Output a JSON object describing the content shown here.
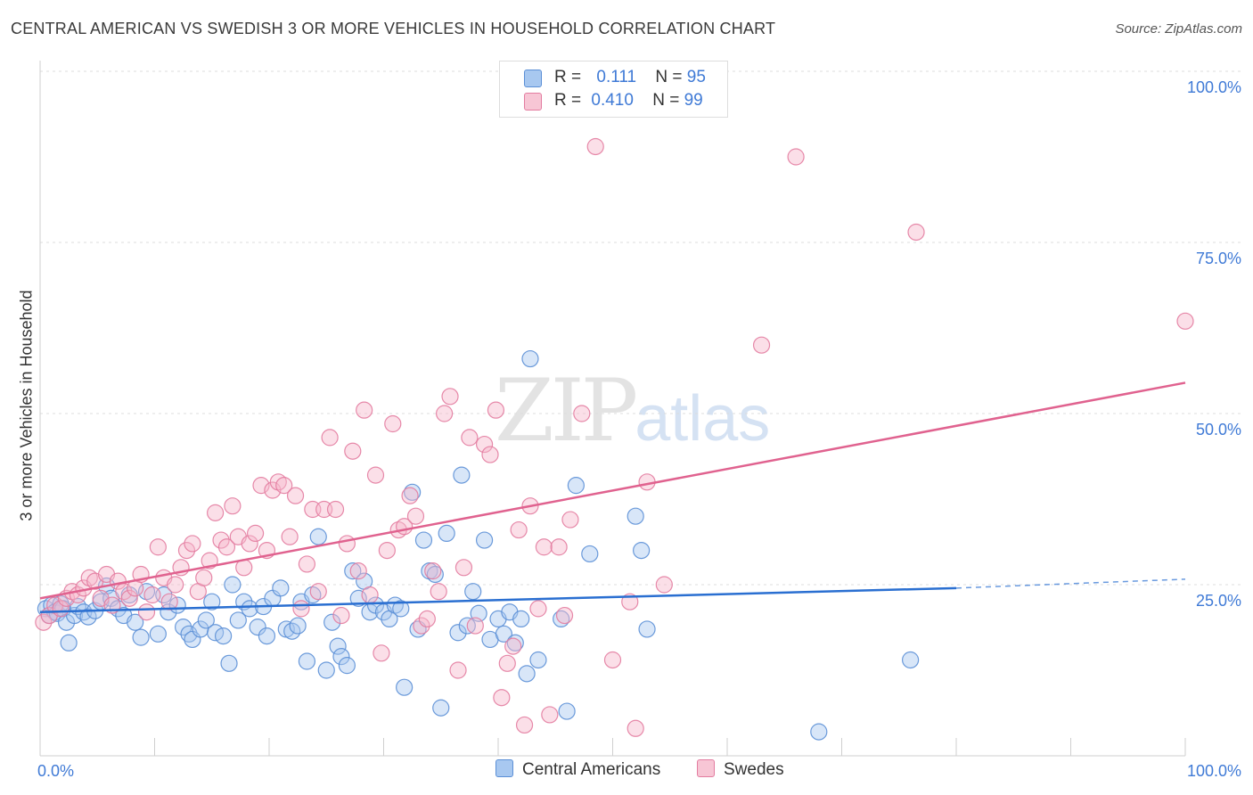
{
  "header": {
    "title": "CENTRAL AMERICAN VS SWEDISH 3 OR MORE VEHICLES IN HOUSEHOLD CORRELATION CHART",
    "source": "Source: ZipAtlas.com"
  },
  "watermark": {
    "zip": "ZIP",
    "atlas": "atlas"
  },
  "legend": {
    "rows": [
      {
        "r_label": "R =",
        "r_value": "0.111",
        "n_label": "N =",
        "n_value": "95",
        "color": "#a8c8f0"
      },
      {
        "r_label": "R =",
        "r_value": "0.410",
        "n_label": "N =",
        "n_value": "99",
        "color": "#f7b8cb"
      }
    ]
  },
  "bottom_legend": {
    "central": "Central Americans",
    "swedes": "Swedes"
  },
  "chart_data": {
    "type": "scatter",
    "title": "CENTRAL AMERICAN VS SWEDISH 3 OR MORE VEHICLES IN HOUSEHOLD CORRELATION CHART",
    "xlabel": "",
    "ylabel": "3 or more Vehicles in Household",
    "xlim": [
      0,
      100
    ],
    "ylim": [
      0,
      100
    ],
    "x_tick_labels": [
      "0.0%",
      "100.0%"
    ],
    "y_ticks": [
      25,
      50,
      75,
      100
    ],
    "y_tick_labels": [
      "25.0%",
      "50.0%",
      "75.0%",
      "100.0%"
    ],
    "grid": true,
    "legend_position": "top-center",
    "colors": {
      "central_fill": "#a8c8f0",
      "central_stroke": "#5b8fd6",
      "central_line": "#2a6fd1",
      "swedes_fill": "#f7b8cb",
      "swedes_stroke": "#e37ca0",
      "swedes_line": "#e0628f",
      "tick_blue": "#3f7ad6"
    },
    "series": [
      {
        "name": "Central Americans",
        "R": 0.111,
        "N": 95,
        "trend": {
          "x0": 0,
          "y0": 21.0,
          "x1": 80,
          "y1": 24.5,
          "dash_to_x": 100,
          "dash_to_y": 25.8
        },
        "points": [
          [
            0.5,
            21.5
          ],
          [
            0.8,
            20.5
          ],
          [
            1.0,
            22.0
          ],
          [
            1.3,
            21.0
          ],
          [
            1.5,
            20.8
          ],
          [
            1.8,
            22.2
          ],
          [
            2.0,
            21.5
          ],
          [
            2.3,
            19.5
          ],
          [
            2.5,
            16.5
          ],
          [
            3.0,
            20.5
          ],
          [
            3.3,
            21.8
          ],
          [
            3.8,
            21.0
          ],
          [
            4.2,
            20.3
          ],
          [
            4.8,
            21.2
          ],
          [
            5.3,
            22.5
          ],
          [
            5.8,
            24.8
          ],
          [
            6.2,
            23.0
          ],
          [
            6.8,
            21.5
          ],
          [
            7.3,
            20.5
          ],
          [
            7.8,
            23.5
          ],
          [
            8.3,
            19.5
          ],
          [
            8.8,
            17.3
          ],
          [
            9.3,
            24.0
          ],
          [
            10.3,
            17.8
          ],
          [
            10.8,
            23.5
          ],
          [
            11.2,
            21.0
          ],
          [
            12.0,
            22.0
          ],
          [
            12.5,
            18.8
          ],
          [
            13.0,
            17.8
          ],
          [
            13.3,
            17.0
          ],
          [
            14.0,
            18.5
          ],
          [
            14.5,
            19.8
          ],
          [
            15.0,
            22.5
          ],
          [
            15.3,
            18.0
          ],
          [
            16.0,
            17.5
          ],
          [
            16.5,
            13.5
          ],
          [
            16.8,
            25.0
          ],
          [
            17.3,
            19.8
          ],
          [
            17.8,
            22.5
          ],
          [
            18.3,
            21.5
          ],
          [
            19.0,
            18.8
          ],
          [
            19.5,
            21.8
          ],
          [
            19.8,
            17.5
          ],
          [
            20.3,
            23.0
          ],
          [
            21.0,
            24.5
          ],
          [
            21.5,
            18.5
          ],
          [
            22.0,
            18.2
          ],
          [
            22.5,
            19.0
          ],
          [
            22.8,
            22.5
          ],
          [
            23.3,
            13.8
          ],
          [
            23.8,
            23.5
          ],
          [
            24.3,
            32.0
          ],
          [
            25.0,
            12.5
          ],
          [
            25.5,
            19.5
          ],
          [
            26.0,
            16.0
          ],
          [
            26.3,
            14.5
          ],
          [
            26.8,
            13.2
          ],
          [
            27.3,
            27.0
          ],
          [
            27.8,
            23.0
          ],
          [
            28.3,
            25.5
          ],
          [
            28.8,
            21.0
          ],
          [
            29.3,
            22.0
          ],
          [
            30.0,
            21.0
          ],
          [
            30.5,
            20.0
          ],
          [
            31.0,
            22.0
          ],
          [
            31.5,
            21.5
          ],
          [
            31.8,
            10.0
          ],
          [
            32.5,
            38.5
          ],
          [
            33.0,
            18.5
          ],
          [
            33.5,
            31.5
          ],
          [
            34.0,
            27.0
          ],
          [
            34.5,
            26.5
          ],
          [
            35.0,
            7.0
          ],
          [
            35.5,
            32.5
          ],
          [
            36.5,
            18.0
          ],
          [
            36.8,
            41.0
          ],
          [
            37.3,
            19.0
          ],
          [
            37.8,
            24.0
          ],
          [
            38.3,
            20.8
          ],
          [
            38.8,
            31.5
          ],
          [
            39.3,
            17.0
          ],
          [
            40.0,
            20.0
          ],
          [
            40.5,
            17.8
          ],
          [
            41.0,
            21.0
          ],
          [
            41.5,
            16.5
          ],
          [
            42.0,
            20.0
          ],
          [
            42.5,
            12.0
          ],
          [
            42.8,
            58.0
          ],
          [
            43.5,
            14.0
          ],
          [
            45.5,
            20.0
          ],
          [
            46.0,
            6.5
          ],
          [
            46.8,
            39.5
          ],
          [
            48.0,
            29.5
          ],
          [
            52.0,
            35.0
          ],
          [
            52.5,
            30.0
          ],
          [
            53.0,
            18.5
          ],
          [
            76.0,
            14.0
          ],
          [
            68.0,
            3.5
          ]
        ]
      },
      {
        "name": "Swedes",
        "R": 0.41,
        "N": 99,
        "trend": {
          "x0": 0,
          "y0": 23.0,
          "x1": 100,
          "y1": 54.5
        },
        "points": [
          [
            0.3,
            19.5
          ],
          [
            0.8,
            20.5
          ],
          [
            1.3,
            22.0
          ],
          [
            1.8,
            21.5
          ],
          [
            2.3,
            23.0
          ],
          [
            2.8,
            24.0
          ],
          [
            3.3,
            23.5
          ],
          [
            3.8,
            24.5
          ],
          [
            4.3,
            26.0
          ],
          [
            4.8,
            25.5
          ],
          [
            5.3,
            23.0
          ],
          [
            5.8,
            26.5
          ],
          [
            6.3,
            22.0
          ],
          [
            6.8,
            25.5
          ],
          [
            7.3,
            24.0
          ],
          [
            7.8,
            23.0
          ],
          [
            8.3,
            24.5
          ],
          [
            8.8,
            26.5
          ],
          [
            9.3,
            21.0
          ],
          [
            9.8,
            23.5
          ],
          [
            10.3,
            30.5
          ],
          [
            10.8,
            26.0
          ],
          [
            11.3,
            22.5
          ],
          [
            11.8,
            25.0
          ],
          [
            12.3,
            27.5
          ],
          [
            12.8,
            30.0
          ],
          [
            13.3,
            31.0
          ],
          [
            13.8,
            24.0
          ],
          [
            14.3,
            26.0
          ],
          [
            14.8,
            28.5
          ],
          [
            15.3,
            35.5
          ],
          [
            15.8,
            31.5
          ],
          [
            16.3,
            30.5
          ],
          [
            16.8,
            36.5
          ],
          [
            17.3,
            32.0
          ],
          [
            17.8,
            27.5
          ],
          [
            18.3,
            31.0
          ],
          [
            18.8,
            32.5
          ],
          [
            19.3,
            39.5
          ],
          [
            19.8,
            30.0
          ],
          [
            20.3,
            38.8
          ],
          [
            20.8,
            40.0
          ],
          [
            21.3,
            39.5
          ],
          [
            21.8,
            32.0
          ],
          [
            22.3,
            38.0
          ],
          [
            22.8,
            21.5
          ],
          [
            23.3,
            28.0
          ],
          [
            23.8,
            36.0
          ],
          [
            24.3,
            24.0
          ],
          [
            24.8,
            36.0
          ],
          [
            25.3,
            46.5
          ],
          [
            25.8,
            36.0
          ],
          [
            26.3,
            20.5
          ],
          [
            26.8,
            31.0
          ],
          [
            27.3,
            44.5
          ],
          [
            27.8,
            27.0
          ],
          [
            28.3,
            50.5
          ],
          [
            28.8,
            23.5
          ],
          [
            29.3,
            41.0
          ],
          [
            29.8,
            15.0
          ],
          [
            30.3,
            30.0
          ],
          [
            30.8,
            48.5
          ],
          [
            31.3,
            33.0
          ],
          [
            31.8,
            33.5
          ],
          [
            32.3,
            38.0
          ],
          [
            32.8,
            35.0
          ],
          [
            33.3,
            19.0
          ],
          [
            33.8,
            20.0
          ],
          [
            34.3,
            27.0
          ],
          [
            34.8,
            24.0
          ],
          [
            35.3,
            50.0
          ],
          [
            35.8,
            52.5
          ],
          [
            36.5,
            12.5
          ],
          [
            37.0,
            27.5
          ],
          [
            37.5,
            46.5
          ],
          [
            38.0,
            19.0
          ],
          [
            38.8,
            45.5
          ],
          [
            39.3,
            44.0
          ],
          [
            39.8,
            50.5
          ],
          [
            40.3,
            8.5
          ],
          [
            40.8,
            13.5
          ],
          [
            41.3,
            16.0
          ],
          [
            41.8,
            33.0
          ],
          [
            42.3,
            4.5
          ],
          [
            42.8,
            36.5
          ],
          [
            43.5,
            21.5
          ],
          [
            44.0,
            30.5
          ],
          [
            44.5,
            6.0
          ],
          [
            45.3,
            30.5
          ],
          [
            45.8,
            20.5
          ],
          [
            46.3,
            34.5
          ],
          [
            47.3,
            50.0
          ],
          [
            48.5,
            89.0
          ],
          [
            50.0,
            14.0
          ],
          [
            51.5,
            22.5
          ],
          [
            52.0,
            4.0
          ],
          [
            53.0,
            40.0
          ],
          [
            54.5,
            25.0
          ],
          [
            63.0,
            60.0
          ],
          [
            66.0,
            87.5
          ],
          [
            76.5,
            76.5
          ],
          [
            100.0,
            63.5
          ]
        ]
      }
    ]
  }
}
